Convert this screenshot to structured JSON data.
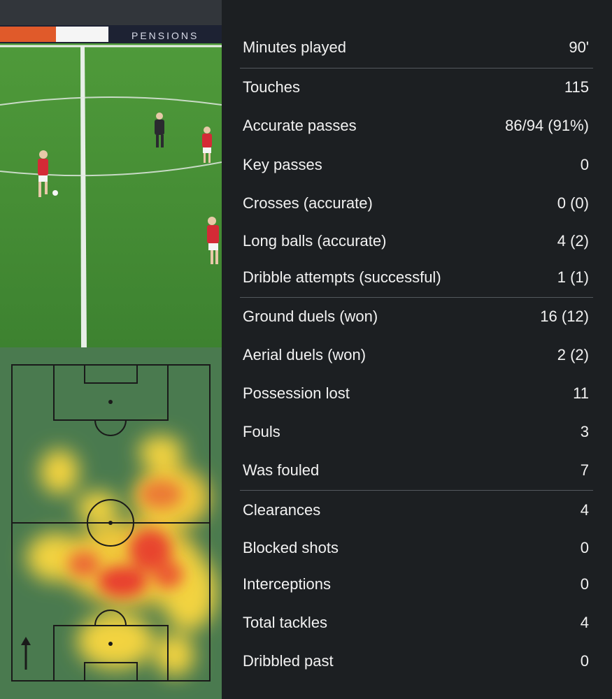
{
  "video": {
    "banner_text": "PENSIONS"
  },
  "heatmap": {
    "direction_icon": "up-arrow-icon"
  },
  "stats": [
    {
      "label": "Minutes played",
      "value": "90'"
    },
    {
      "label": "Touches",
      "value": "115"
    },
    {
      "label": "Accurate passes",
      "value": "86/94 (91%)"
    },
    {
      "label": "Key passes",
      "value": "0"
    },
    {
      "label": "Crosses (accurate)",
      "value": "0 (0)"
    },
    {
      "label": "Long balls (accurate)",
      "value": "4 (2)"
    },
    {
      "label": "Dribble attempts (successful)",
      "value": "1 (1)"
    },
    {
      "label": "Ground duels (won)",
      "value": "16 (12)"
    },
    {
      "label": "Aerial duels (won)",
      "value": "2 (2)"
    },
    {
      "label": "Possession lost",
      "value": "11"
    },
    {
      "label": "Fouls",
      "value": "3"
    },
    {
      "label": "Was fouled",
      "value": "7"
    },
    {
      "label": "Clearances",
      "value": "4"
    },
    {
      "label": "Blocked shots",
      "value": "0"
    },
    {
      "label": "Interceptions",
      "value": "0"
    },
    {
      "label": "Total tackles",
      "value": "4"
    },
    {
      "label": "Dribbled past",
      "value": "0"
    }
  ],
  "colors": {
    "background": "#1c1f22",
    "text": "#f2f2f2",
    "divider": "#54595e",
    "pitch": "#4a7a4f",
    "grass": "#3f8a2e"
  }
}
